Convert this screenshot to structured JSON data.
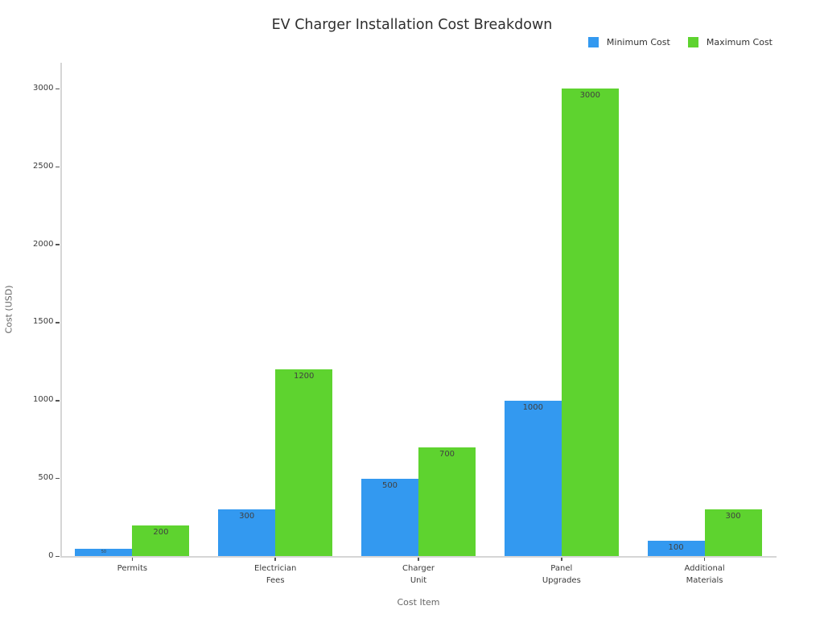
{
  "chart_data": {
    "type": "bar",
    "title": "EV Charger Installation Cost Breakdown",
    "xlabel": "Cost Item",
    "ylabel": "Cost (USD)",
    "categories": [
      "Permits",
      "Electrician Fees",
      "Charger Unit",
      "Panel Upgrades",
      "Additional Materials"
    ],
    "category_tick_lines": [
      [
        "Permits"
      ],
      [
        "Electrician",
        "Fees"
      ],
      [
        "Charger",
        "Unit"
      ],
      [
        "Panel",
        "Upgrades"
      ],
      [
        "Additional",
        "Materials"
      ]
    ],
    "series": [
      {
        "name": "Minimum Cost",
        "color": "#3399f0",
        "values": [
          50,
          300,
          500,
          1000,
          100
        ]
      },
      {
        "name": "Maximum Cost",
        "color": "#5ed32f",
        "values": [
          200,
          1200,
          700,
          3000,
          300
        ]
      }
    ],
    "bar_labels": [
      "50",
      "300",
      "500",
      "1000",
      "100",
      "200",
      "1200",
      "700",
      "3000",
      "300"
    ],
    "yticks": [
      "0",
      "500",
      "1000",
      "1500",
      "2000",
      "2500",
      "3000"
    ],
    "ylim": [
      0,
      3165
    ],
    "grid": false,
    "legend_position": "top-right"
  }
}
